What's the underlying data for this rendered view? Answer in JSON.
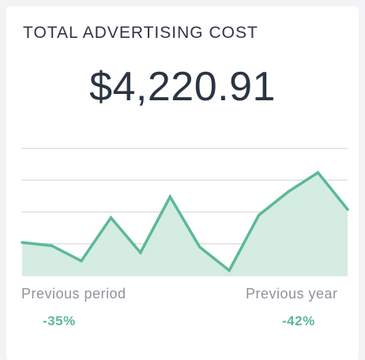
{
  "widget": {
    "title": "TOTAL ADVERTISING COST",
    "value": "$4,220.91",
    "accent_color": "#5cb996",
    "fill_color": "#d4ece1"
  },
  "comparisons": [
    {
      "label": "Previous period",
      "change": "-35%"
    },
    {
      "label": "Previous year",
      "change": "-42%"
    }
  ],
  "chart_data": {
    "type": "area",
    "grid": true,
    "values": [
      52,
      47,
      23,
      91,
      36,
      124,
      45,
      8,
      95,
      132,
      162,
      104
    ],
    "ylim": [
      0,
      200
    ],
    "title": "",
    "xlabel": "",
    "ylabel": ""
  }
}
